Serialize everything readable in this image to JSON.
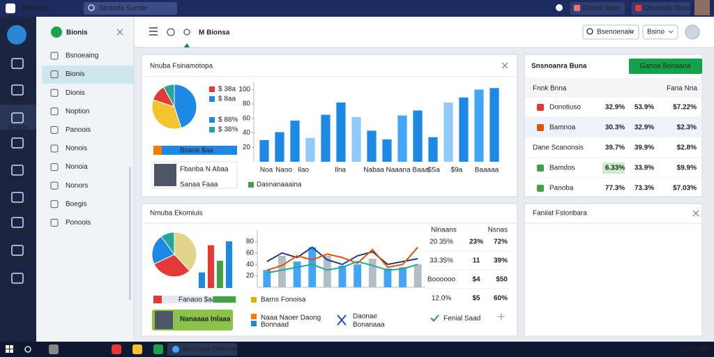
{
  "topbar": {
    "app": "Bknongi",
    "search": "Slcaoda Sonsle",
    "buttons": [
      "Dsnoe Ilaos",
      "Dounsdo Slonos"
    ]
  },
  "icon_labels": [
    "Bmuon",
    "Blnon",
    "Bonoe",
    "Lood",
    "Bonre",
    "Bloso",
    "Bonsee",
    "Bnosk",
    "Bonaee"
  ],
  "sidebar": {
    "title": "Bionis",
    "items": [
      "Bsnoeaing",
      "Bionis",
      "Dionis",
      "Noption",
      "Panoois",
      "Nonois",
      "Nonoia",
      "Nonors",
      "Boegis",
      "Ponoois"
    ]
  },
  "toolbar": {
    "title": "M Bionsa",
    "dropdowns": [
      "Bsenoenain",
      "Bsino"
    ]
  },
  "panel1": {
    "title": "Nnuba Fsinamotopa",
    "pie": {
      "type": "pie",
      "values": [
        45,
        35,
        12,
        8
      ],
      "colors": [
        "#1e88e5",
        "#f4c430",
        "#e53935",
        "#26a69a"
      ]
    },
    "legend": [
      "$ 38a",
      "$ 8aa",
      "$ 88%",
      "$ 38%"
    ],
    "legend_colors": [
      "#e53935",
      "#1e88e5",
      "#1e88e5",
      "#26a69a"
    ],
    "progress": "Bsaoe $aa",
    "person": {
      "name": "Fbanba N Abaa",
      "role": "Sanaa Faaa"
    },
    "bars": {
      "type": "bar",
      "values": [
        30,
        41,
        57,
        33,
        65,
        82,
        62,
        43,
        31,
        64,
        71,
        34,
        82,
        89,
        100,
        102
      ],
      "colors": [
        "#1e88e5",
        "#1e88e5",
        "#1e88e5",
        "#90caf9",
        "#1e88e5",
        "#1e88e5",
        "#90caf9",
        "#1e88e5",
        "#1e88e5",
        "#42a5f5",
        "#1e88e5",
        "#1e88e5",
        "#90caf9",
        "#1e88e5",
        "#42a5f5",
        "#1e88e5"
      ],
      "ylim": [
        0,
        110
      ],
      "yticks": [
        20,
        40,
        60,
        80,
        100
      ]
    },
    "x_labels": [
      "Noa",
      "Naoo",
      "Ilao",
      "Ilna",
      "Nabaa Naaana Baaa",
      "$Sa",
      "$9a",
      "Baaaaa"
    ],
    "series_label": "Dasnanaaaina"
  },
  "panel2": {
    "title": "Snsnoanra Buna",
    "button": "Ganoa Bonaana",
    "header": [
      "Fnnk Bnna",
      "Fana Nna"
    ],
    "rows": [
      [
        "Donotiuso",
        "32.9%",
        "53.9%",
        "$7.22%"
      ],
      [
        "Bamnoa",
        "30.3%",
        "32.9%",
        "$2.3%"
      ],
      [
        "Dane Scanonsis",
        "39.7%",
        "39.9%",
        "$2.8%"
      ],
      [
        "Bamdos",
        "6.33%",
        "33.9%",
        "$9.9%"
      ],
      [
        "Panoba",
        "77.3%",
        "73.3%",
        "$7.03%"
      ]
    ],
    "row_colors": [
      "#e53935",
      "#e65100",
      "#ffffff",
      "#43a047",
      "#43a047"
    ],
    "cell_colors": [
      [
        "#e53935",
        "#e0a800",
        "#2e9e3e"
      ],
      [
        "#e53935",
        "#e0a800",
        "#2e9e3e"
      ],
      [
        "#e0b000",
        "#e0b000",
        "#e53935"
      ],
      [
        "#2e7d32",
        "#e0a800",
        "#e53935"
      ],
      [
        "#1e88e5",
        "#e0a800",
        "#2e9e3e"
      ]
    ]
  },
  "panel3": {
    "title": "Nmuba Ekomiuis",
    "pie": {
      "type": "pie",
      "values": [
        38,
        30,
        22,
        10
      ],
      "colors": [
        "#e0d48a",
        "#e53935",
        "#1e88e5",
        "#26a69a"
      ]
    },
    "bars": {
      "type": "bar",
      "values": [
        20,
        55,
        35,
        60
      ],
      "colors": [
        "#1e88e5",
        "#e53935",
        "#43a047",
        "#1e88e5"
      ],
      "ylim": [
        0,
        70
      ]
    },
    "progress": "Fanaoo $aaa",
    "person": "Nanaaaa Inlaaa",
    "combo": {
      "type": "line",
      "bars": [
        30,
        55,
        45,
        70,
        55,
        38,
        40,
        50,
        33,
        35,
        40
      ],
      "ylim": [
        0,
        100
      ],
      "yticks": [
        20,
        40,
        60,
        80
      ],
      "series": [
        {
          "color": "#1f3c88",
          "values": [
            45,
            60,
            52,
            70,
            48,
            40,
            55,
            62,
            40,
            45,
            50
          ]
        },
        {
          "color": "#e65100",
          "values": [
            30,
            38,
            55,
            48,
            58,
            52,
            42,
            66,
            35,
            40,
            70
          ]
        },
        {
          "color": "#26a69a",
          "values": [
            25,
            30,
            35,
            40,
            30,
            35,
            45,
            38,
            30,
            32,
            40
          ]
        }
      ]
    },
    "table": {
      "header": [
        "Ninaans",
        "Nsnas"
      ],
      "rows": [
        [
          "20 35%",
          "23%",
          "72%"
        ],
        [
          "33.35%",
          "11",
          "39%"
        ],
        [
          "Boooooo",
          "$4",
          "$50"
        ],
        [
          "12.0%",
          "$5",
          "60%"
        ]
      ],
      "cell_colors": [
        [
          "#333333",
          "#2e9e3e",
          "#e53935"
        ],
        [
          "#333333",
          "#e53935",
          "#e53935"
        ],
        [
          "#333333",
          "#2e9e3e",
          "#1e88e5"
        ],
        [
          "#e0a800",
          "#2e9e3e",
          "#e0a800"
        ]
      ]
    },
    "legend": [
      "Barns Fonoisa",
      "Naaa Naoer Daong",
      "Bonnaad",
      "Daonae",
      "Bonanaaa",
      "Fenial Saad"
    ]
  },
  "panel4": {
    "title": "Faniiat Fstonbara"
  },
  "taskbar": {
    "window": "Becnoaa Onnenas",
    "time": "10:14 AM"
  }
}
